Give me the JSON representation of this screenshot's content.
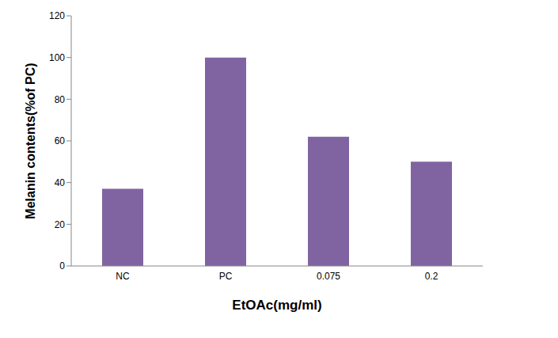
{
  "chart_data": {
    "type": "bar",
    "categories": [
      "NC",
      "PC",
      "0.075",
      "0.2"
    ],
    "values": [
      37,
      100,
      62,
      50
    ],
    "color": "#8064a2",
    "x_label": "EtOAc(mg/ml)",
    "y_label": "Melanin contents(%of PC)",
    "ylim": [
      0,
      120
    ],
    "yticks": [
      0,
      20,
      40,
      60,
      80,
      100,
      120
    ],
    "grid": false
  }
}
